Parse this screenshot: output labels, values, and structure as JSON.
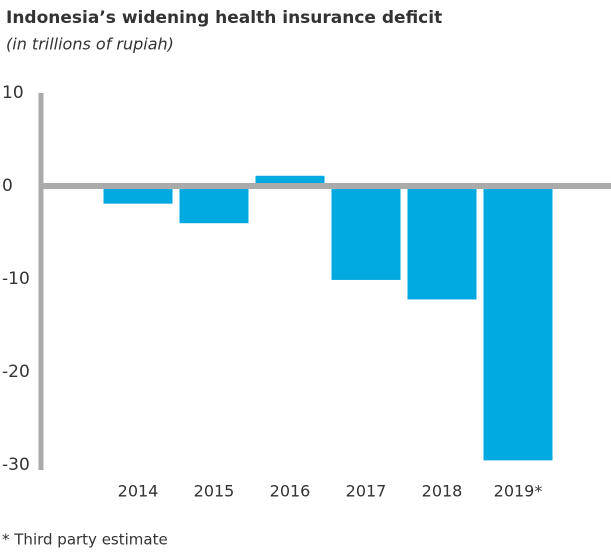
{
  "chart_data": {
    "type": "bar",
    "title": "Indonesia’s widening health insurance deficit",
    "subtitle": "(in trillions of rupiah)",
    "categories": [
      "2014",
      "2015",
      "2016",
      "2017",
      "2018",
      "2019*"
    ],
    "values": [
      -1.9,
      -4.0,
      1.1,
      -10.1,
      -12.2,
      -29.5
    ],
    "color": "#00a9e0",
    "ylim": [
      -30,
      10
    ],
    "yticks": [
      -30,
      -20,
      -10,
      0,
      10
    ],
    "grid": false,
    "footnote": "* Third party estimate"
  }
}
